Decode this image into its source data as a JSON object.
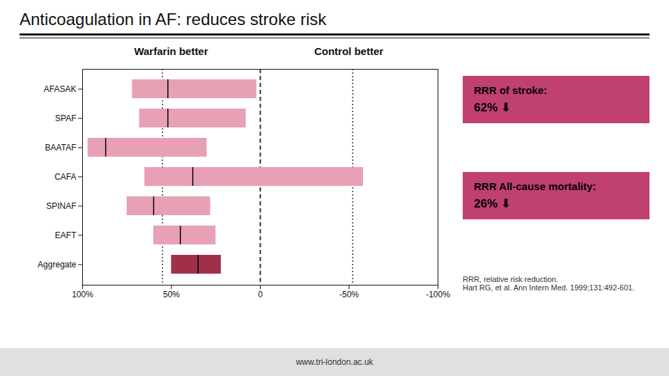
{
  "chart_data": {
    "type": "bar",
    "orientation": "horizontal",
    "title": "Anticoagulation in AF: reduces stroke risk",
    "categories": [
      "AFASAK",
      "SPAF",
      "BAATAF",
      "CAFA",
      "SPINAF",
      "EAFT",
      "Aggregate"
    ],
    "values": [
      52,
      52,
      87,
      38,
      60,
      45,
      35
    ],
    "left": [
      72,
      68,
      97,
      65,
      75,
      60,
      50
    ],
    "right": [
      2,
      8,
      30,
      -58,
      28,
      25,
      22
    ],
    "colors": [
      "#e8a0b4",
      "#e8a0b4",
      "#e8a0b4",
      "#e8a0b4",
      "#e8a0b4",
      "#e8a0b4",
      "#a0304a"
    ],
    "xlim": [
      100,
      -100
    ],
    "xticks": [
      {
        "value": 100,
        "label": "100%"
      },
      {
        "value": 50,
        "label": "50%"
      },
      0,
      {
        "value": -50,
        "label": "-50%"
      },
      {
        "value": -100,
        "label": "-100%"
      }
    ],
    "reference_lines": [
      {
        "value": 55,
        "line_style": "dotted"
      },
      {
        "value": -52,
        "line_style": "dotted"
      },
      {
        "value": 0,
        "line_style": "dashed"
      }
    ],
    "headers": [
      "Warfarin better",
      "Control better"
    ],
    "annotations": [
      {
        "lines": [
          "RRR of stroke:",
          "62%  ⬇"
        ],
        "color": "#c04070"
      },
      {
        "lines": [
          "RRR All-cause mortality:",
          "26%  ⬇"
        ],
        "color": "#c04070"
      }
    ],
    "footnotes": [
      "RRR, relative risk reduction.",
      "Hart RG, et al. Ann Intern Med. 1999;131:492-601."
    ],
    "caption": "www.tri-london.ac.uk",
    "grid": false
  }
}
